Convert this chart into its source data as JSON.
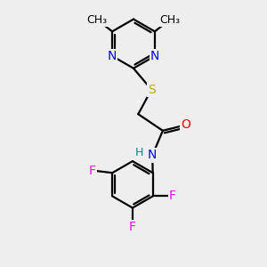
{
  "background_color": "#eeeeee",
  "atom_colors": {
    "N": "#0000ee",
    "S": "#bbaa00",
    "O": "#ee0000",
    "F": "#ee00ee",
    "C": "#000000",
    "H": "#008888"
  },
  "bond_color": "#000000",
  "bond_width": 1.6,
  "font_size": 10,
  "methyl_font_size": 9
}
